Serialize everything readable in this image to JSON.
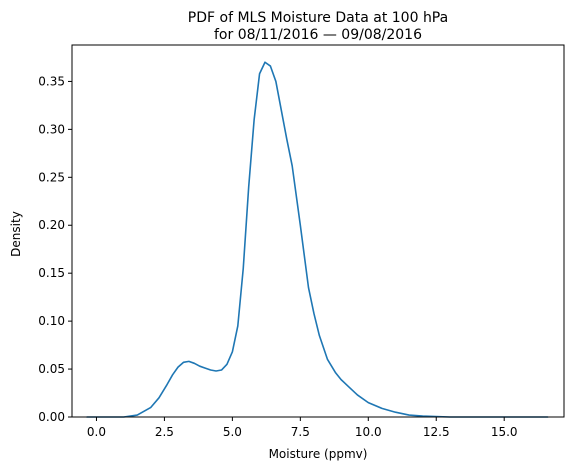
{
  "chart_data": {
    "type": "line",
    "title_line1": "PDF of MLS Moisture Data at 100 hPa",
    "title_line2": "for 08/11/2016 — 09/08/2016",
    "xlabel": "Moisture (ppmv)",
    "ylabel": "Density",
    "xlim": [
      -0.9,
      17.2
    ],
    "ylim": [
      0,
      0.388
    ],
    "xticks": [
      0.0,
      2.5,
      5.0,
      7.5,
      10.0,
      12.5,
      15.0
    ],
    "xtick_labels": [
      "0.0",
      "2.5",
      "5.0",
      "7.5",
      "10.0",
      "12.5",
      "15.0"
    ],
    "yticks": [
      0.0,
      0.05,
      0.1,
      0.15,
      0.2,
      0.25,
      0.3,
      0.35
    ],
    "ytick_labels": [
      "0.00",
      "0.05",
      "0.10",
      "0.15",
      "0.20",
      "0.25",
      "0.30",
      "0.35"
    ],
    "grid": false,
    "line_color": "#1f77b4",
    "series": [
      {
        "x": [
          -0.35,
          0.5,
          1.0,
          1.5,
          2.0,
          2.3,
          2.6,
          2.8,
          3.0,
          3.2,
          3.4,
          3.6,
          3.8,
          4.0,
          4.2,
          4.4,
          4.6,
          4.8,
          5.0,
          5.2,
          5.4,
          5.6,
          5.8,
          6.0,
          6.2,
          6.4,
          6.6,
          6.8,
          7.0,
          7.2,
          7.5,
          7.8,
          8.0,
          8.2,
          8.5,
          8.8,
          9.0,
          9.3,
          9.6,
          10.0,
          10.5,
          11.0,
          11.5,
          12.0,
          13.0,
          14.0,
          15.0,
          16.0,
          16.6
        ],
        "y": [
          0.0,
          0.0,
          0.0,
          0.002,
          0.01,
          0.02,
          0.034,
          0.044,
          0.052,
          0.057,
          0.058,
          0.056,
          0.053,
          0.051,
          0.049,
          0.048,
          0.049,
          0.055,
          0.068,
          0.095,
          0.155,
          0.24,
          0.31,
          0.358,
          0.37,
          0.366,
          0.35,
          0.32,
          0.29,
          0.262,
          0.2,
          0.135,
          0.108,
          0.085,
          0.06,
          0.046,
          0.039,
          0.031,
          0.023,
          0.015,
          0.009,
          0.005,
          0.002,
          0.001,
          0.0,
          0.0,
          0.0,
          0.0,
          0.0
        ]
      }
    ]
  }
}
